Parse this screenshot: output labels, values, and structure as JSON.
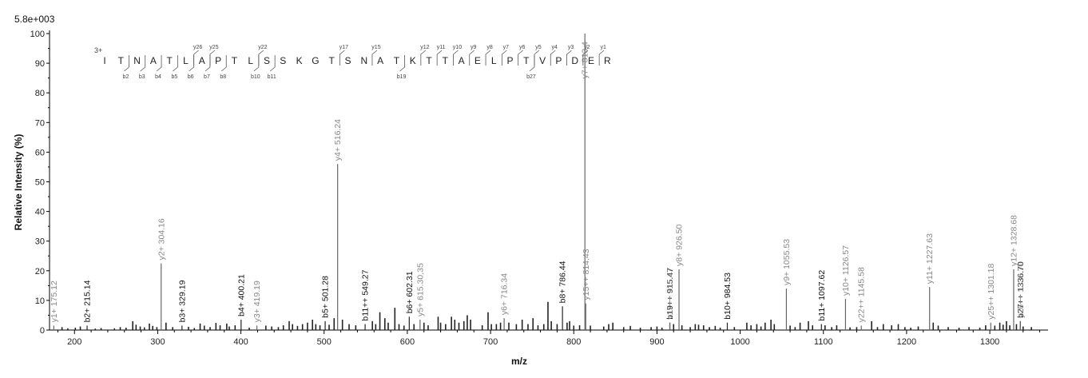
{
  "chart_data": {
    "type": "bar",
    "title": "",
    "scale_label": "5.8e+003",
    "xlabel": "m/z",
    "ylabel": "Relative   Intensity (%)",
    "xlim": [
      170,
      1370
    ],
    "ylim": [
      0,
      100
    ],
    "x_ticks": [
      200,
      300,
      400,
      500,
      600,
      700,
      800,
      900,
      1000,
      1100,
      1200,
      1300
    ],
    "y_ticks": [
      0,
      10,
      20,
      30,
      40,
      50,
      60,
      70,
      80,
      90,
      100
    ],
    "colors": {
      "b_ion": "#111111",
      "y_ion": "#888888",
      "noise": "#222222",
      "axis": "#000000"
    },
    "annotated_peaks": [
      {
        "mz": 175.12,
        "intensity": 1.5,
        "label": "y1+ 175.12",
        "ion": "y"
      },
      {
        "mz": 215.14,
        "intensity": 1.5,
        "label": "b2+ 215.14",
        "ion": "b"
      },
      {
        "mz": 304.16,
        "intensity": 22.5,
        "label": "y2+ 304.16",
        "ion": "y"
      },
      {
        "mz": 329.19,
        "intensity": 1.5,
        "label": "b3+ 329.19",
        "ion": "b"
      },
      {
        "mz": 400.21,
        "intensity": 3.5,
        "label": "b4+ 400.21",
        "ion": "b"
      },
      {
        "mz": 419.19,
        "intensity": 1.5,
        "label": "y3+ 419.19",
        "ion": "y"
      },
      {
        "mz": 501.28,
        "intensity": 3.0,
        "label": "b5+ 501.28",
        "ion": "b"
      },
      {
        "mz": 516.24,
        "intensity": 56,
        "label": "y4+ 516.24",
        "ion": "y"
      },
      {
        "mz": 549.27,
        "intensity": 2.0,
        "label": "b11++ 549.27",
        "ion": "b"
      },
      {
        "mz": 602.31,
        "intensity": 4.5,
        "label": "b6+ 602.31",
        "ion": "b"
      },
      {
        "mz": 615.3,
        "intensity": 3.5,
        "label": "y5+ 615.30,35",
        "ion": "y"
      },
      {
        "mz": 716.34,
        "intensity": 4.0,
        "label": "y6+ 716.34",
        "ion": "y"
      },
      {
        "mz": 786.44,
        "intensity": 8.0,
        "label": "b8+ 786.44",
        "ion": "b"
      },
      {
        "mz": 813.4,
        "intensity": 100,
        "label": "y7+ 813.4",
        "ion": "y"
      },
      {
        "mz": 814.43,
        "intensity": 9.0,
        "label": "y15++ 814.43",
        "ion": "y"
      },
      {
        "mz": 915.47,
        "intensity": 2.5,
        "label": "b19++ 915.47",
        "ion": "b"
      },
      {
        "mz": 915.47,
        "intensity": 2.5,
        "label": "v17++ 915.47",
        "ion": "y"
      },
      {
        "mz": 926.5,
        "intensity": 20.5,
        "label": "y8+ 926.50",
        "ion": "y"
      },
      {
        "mz": 984.53,
        "intensity": 2.5,
        "label": "b10+ 984.53",
        "ion": "b"
      },
      {
        "mz": 1055.53,
        "intensity": 14.0,
        "label": "y9+ 1055.53",
        "ion": "y"
      },
      {
        "mz": 1097.62,
        "intensity": 2.0,
        "label": "b11+ 1097.62",
        "ion": "b"
      },
      {
        "mz": 1126.57,
        "intensity": 10.5,
        "label": "y10+ 1126.57",
        "ion": "y"
      },
      {
        "mz": 1145.58,
        "intensity": 1.5,
        "label": "y22++ 1145.58",
        "ion": "y"
      },
      {
        "mz": 1227.63,
        "intensity": 14.5,
        "label": "y11+ 1227.63",
        "ion": "y"
      },
      {
        "mz": 1301.18,
        "intensity": 2.5,
        "label": "y25++ 1301.18",
        "ion": "y"
      },
      {
        "mz": 1328.68,
        "intensity": 20.5,
        "label": "y12+ 1328.68",
        "ion": "y"
      },
      {
        "mz": 1336.7,
        "intensity": 3.0,
        "label": "b27++ 1336.70",
        "ion": "b"
      },
      {
        "mz": 1336.7,
        "intensity": 3.0,
        "label": "y26++ 1336.70",
        "ion": "y"
      }
    ],
    "noise_peaks": [
      [
        185,
        1.0
      ],
      [
        192,
        0.6
      ],
      [
        201,
        0.8
      ],
      [
        207,
        1.2
      ],
      [
        225,
        0.5
      ],
      [
        232,
        0.7
      ],
      [
        248,
        0.6
      ],
      [
        255,
        1.0
      ],
      [
        262,
        0.8
      ],
      [
        270,
        3.0
      ],
      [
        274,
        1.8
      ],
      [
        279,
        1.2
      ],
      [
        284,
        0.9
      ],
      [
        290,
        2.2
      ],
      [
        294,
        1.4
      ],
      [
        299,
        1.0
      ],
      [
        310,
        2.5
      ],
      [
        318,
        1.0
      ],
      [
        337,
        1.1
      ],
      [
        344,
        0.7
      ],
      [
        351,
        2.2
      ],
      [
        356,
        1.5
      ],
      [
        363,
        1.0
      ],
      [
        370,
        2.4
      ],
      [
        375,
        1.6
      ],
      [
        383,
        2.2
      ],
      [
        386,
        1.2
      ],
      [
        393,
        1.6
      ],
      [
        410,
        0.8
      ],
      [
        430,
        1.5
      ],
      [
        437,
        1.2
      ],
      [
        445,
        1.0
      ],
      [
        451,
        1.6
      ],
      [
        458,
        3.0
      ],
      [
        462,
        2.0
      ],
      [
        468,
        1.4
      ],
      [
        474,
        2.0
      ],
      [
        480,
        2.5
      ],
      [
        486,
        3.5
      ],
      [
        490,
        2.0
      ],
      [
        495,
        1.6
      ],
      [
        506,
        1.8
      ],
      [
        512,
        4.0
      ],
      [
        522,
        3.5
      ],
      [
        530,
        2.0
      ],
      [
        538,
        1.6
      ],
      [
        558,
        3.0
      ],
      [
        562,
        2.0
      ],
      [
        567,
        6.0
      ],
      [
        573,
        4.0
      ],
      [
        577,
        2.5
      ],
      [
        585,
        7.5
      ],
      [
        590,
        2.0
      ],
      [
        596,
        1.5
      ],
      [
        608,
        2.0
      ],
      [
        620,
        2.5
      ],
      [
        625,
        1.6
      ],
      [
        637,
        4.5
      ],
      [
        640,
        2.5
      ],
      [
        646,
        2.0
      ],
      [
        653,
        4.5
      ],
      [
        657,
        3.5
      ],
      [
        662,
        2.5
      ],
      [
        668,
        3.0
      ],
      [
        672,
        5.0
      ],
      [
        676,
        3.5
      ],
      [
        690,
        1.6
      ],
      [
        697,
        6.0
      ],
      [
        701,
        2.0
      ],
      [
        707,
        2.0
      ],
      [
        712,
        2.5
      ],
      [
        722,
        2.5
      ],
      [
        731,
        2.0
      ],
      [
        738,
        3.5
      ],
      [
        745,
        2.0
      ],
      [
        751,
        4.0
      ],
      [
        757,
        1.6
      ],
      [
        764,
        2.0
      ],
      [
        769,
        9.5
      ],
      [
        773,
        3.0
      ],
      [
        780,
        2.0
      ],
      [
        792,
        2.5
      ],
      [
        795,
        3.0
      ],
      [
        800,
        1.5
      ],
      [
        807,
        1.6
      ],
      [
        820,
        1.5
      ],
      [
        836,
        1.2
      ],
      [
        842,
        2.0
      ],
      [
        847,
        2.5
      ],
      [
        860,
        1.0
      ],
      [
        868,
        1.4
      ],
      [
        880,
        0.8
      ],
      [
        893,
        1.0
      ],
      [
        900,
        1.2
      ],
      [
        906,
        0.8
      ],
      [
        920,
        2.0
      ],
      [
        930,
        1.6
      ],
      [
        940,
        1.0
      ],
      [
        946,
        2.0
      ],
      [
        950,
        1.8
      ],
      [
        956,
        1.6
      ],
      [
        963,
        1.0
      ],
      [
        970,
        1.4
      ],
      [
        976,
        0.8
      ],
      [
        993,
        1.0
      ],
      [
        1008,
        2.5
      ],
      [
        1013,
        1.6
      ],
      [
        1020,
        2.0
      ],
      [
        1025,
        1.2
      ],
      [
        1030,
        2.5
      ],
      [
        1037,
        3.5
      ],
      [
        1041,
        2.0
      ],
      [
        1060,
        1.5
      ],
      [
        1066,
        1.0
      ],
      [
        1072,
        2.5
      ],
      [
        1082,
        3.0
      ],
      [
        1087,
        1.6
      ],
      [
        1102,
        1.6
      ],
      [
        1110,
        1.0
      ],
      [
        1116,
        1.6
      ],
      [
        1132,
        0.9
      ],
      [
        1140,
        1.0
      ],
      [
        1158,
        3.0
      ],
      [
        1165,
        1.0
      ],
      [
        1172,
        2.0
      ],
      [
        1182,
        1.6
      ],
      [
        1190,
        2.0
      ],
      [
        1198,
        1.0
      ],
      [
        1205,
        0.8
      ],
      [
        1214,
        1.2
      ],
      [
        1232,
        2.5
      ],
      [
        1238,
        1.5
      ],
      [
        1250,
        1.0
      ],
      [
        1263,
        0.8
      ],
      [
        1275,
        1.0
      ],
      [
        1288,
        0.8
      ],
      [
        1295,
        1.6
      ],
      [
        1306,
        1.5
      ],
      [
        1312,
        2.5
      ],
      [
        1316,
        1.8
      ],
      [
        1320,
        3.0
      ],
      [
        1324,
        1.6
      ],
      [
        1332,
        2.0
      ],
      [
        1340,
        1.2
      ],
      [
        1350,
        1.0
      ]
    ],
    "sequence": {
      "charge": "3+",
      "residues": [
        "I",
        "T",
        "N",
        "A",
        "T",
        "L",
        "A",
        "P",
        "T",
        "L",
        "S",
        "S",
        "K",
        "G",
        "T",
        "S",
        "N",
        "A",
        "T",
        "K",
        "T",
        "T",
        "A",
        "E",
        "L",
        "P",
        "T",
        "V",
        "P",
        "D",
        "E",
        "R"
      ],
      "b_ions": [
        {
          "after": 2,
          "label": "b2"
        },
        {
          "after": 3,
          "label": "b3"
        },
        {
          "after": 4,
          "label": "b4"
        },
        {
          "after": 5,
          "label": "b5"
        },
        {
          "after": 6,
          "label": "b6"
        },
        {
          "after": 7,
          "label": "b7"
        },
        {
          "after": 8,
          "label": "b8"
        },
        {
          "after": 10,
          "label": "b10"
        },
        {
          "after": 11,
          "label": "b11"
        },
        {
          "after": 19,
          "label": "b19"
        },
        {
          "after": 27,
          "label": "b27"
        }
      ],
      "y_ions": [
        {
          "after": 6,
          "label": "y26"
        },
        {
          "after": 7,
          "label": "y25"
        },
        {
          "after": 10,
          "label": "y22"
        },
        {
          "after": 15,
          "label": "y17"
        },
        {
          "after": 17,
          "label": "y15"
        },
        {
          "after": 20,
          "label": "y12"
        },
        {
          "after": 21,
          "label": "y11"
        },
        {
          "after": 22,
          "label": "y10"
        },
        {
          "after": 23,
          "label": "y9"
        },
        {
          "after": 24,
          "label": "y8"
        },
        {
          "after": 25,
          "label": "y7"
        },
        {
          "after": 26,
          "label": "y6"
        },
        {
          "after": 27,
          "label": "y5"
        },
        {
          "after": 28,
          "label": "y4"
        },
        {
          "after": 29,
          "label": "y3"
        },
        {
          "after": 30,
          "label": "y2"
        },
        {
          "after": 31,
          "label": "y1"
        }
      ]
    }
  }
}
